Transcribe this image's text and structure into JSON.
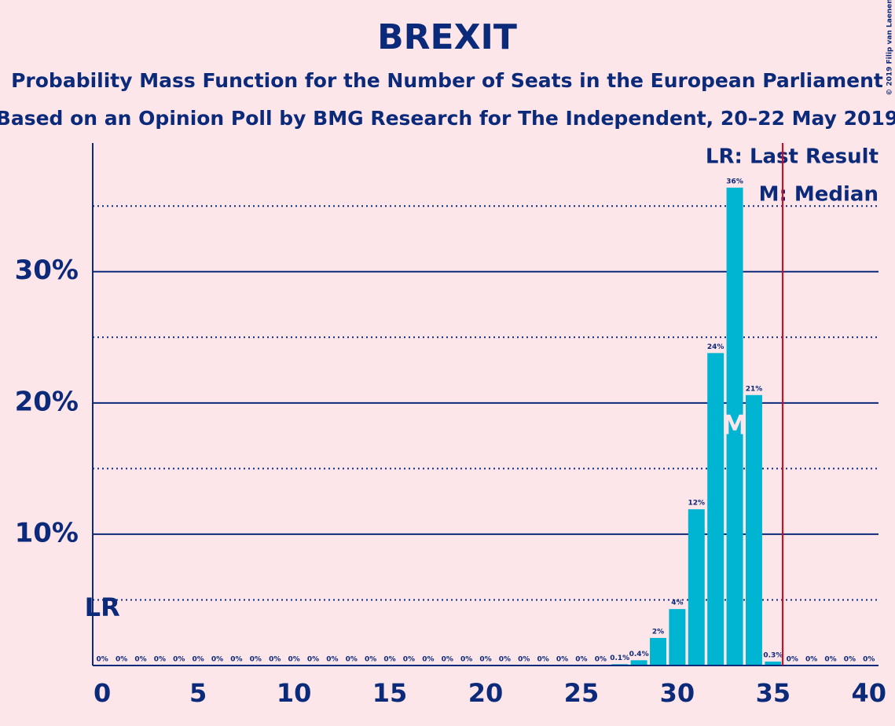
{
  "chart_data": {
    "type": "bar",
    "title": "BREXIT",
    "subtitle": "Probability Mass Function for the Number of Seats in the European Parliament",
    "subtitle2": "Based on an Opinion Poll by BMG Research for The Independent, 20–22 May 2019",
    "copyright": "© 2019 Filip van Laenen",
    "legend": [
      "LR: Last Result",
      "M: Median"
    ],
    "categories": [
      0,
      1,
      2,
      3,
      4,
      5,
      6,
      7,
      8,
      9,
      10,
      11,
      12,
      13,
      14,
      15,
      16,
      17,
      18,
      19,
      20,
      21,
      22,
      23,
      24,
      25,
      26,
      27,
      28,
      29,
      30,
      31,
      32,
      33,
      34,
      35,
      36,
      37,
      38,
      39,
      40
    ],
    "values": [
      0,
      0,
      0,
      0,
      0,
      0,
      0,
      0,
      0,
      0,
      0,
      0,
      0,
      0,
      0,
      0,
      0,
      0,
      0,
      0,
      0,
      0,
      0,
      0,
      0,
      0,
      0,
      0.1,
      0.4,
      2.1,
      4.3,
      11.9,
      23.8,
      36.4,
      20.6,
      0.3,
      0,
      0,
      0,
      0,
      0
    ],
    "value_labels": [
      "0%",
      "0%",
      "0%",
      "0%",
      "0%",
      "0%",
      "0%",
      "0%",
      "0%",
      "0%",
      "0%",
      "0%",
      "0%",
      "0%",
      "0%",
      "0%",
      "0%",
      "0%",
      "0%",
      "0%",
      "0%",
      "0%",
      "0%",
      "0%",
      "0%",
      "0%",
      "0%",
      "0.1%",
      "0.4%",
      "2%",
      "4%",
      "12%",
      "24%",
      "36%",
      "21%",
      "0.3%",
      "0%",
      "0%",
      "0%",
      "0%",
      "0%"
    ],
    "color": "#00b5d1",
    "xlim": [
      -0.5,
      40.5
    ],
    "xticks": [
      0,
      5,
      10,
      15,
      20,
      25,
      30,
      35,
      40
    ],
    "ylim": [
      0,
      39.8
    ],
    "yticks": [
      {
        "value": 10,
        "label": "10%"
      },
      {
        "value": 20,
        "label": "20%"
      },
      {
        "value": 30,
        "label": "30%"
      }
    ],
    "minor_grid": [
      5,
      15,
      25,
      35
    ],
    "last_result": {
      "seats": 0,
      "label": "LR"
    },
    "median": {
      "seats": 33,
      "label": "M"
    },
    "red_line": 35.5
  }
}
